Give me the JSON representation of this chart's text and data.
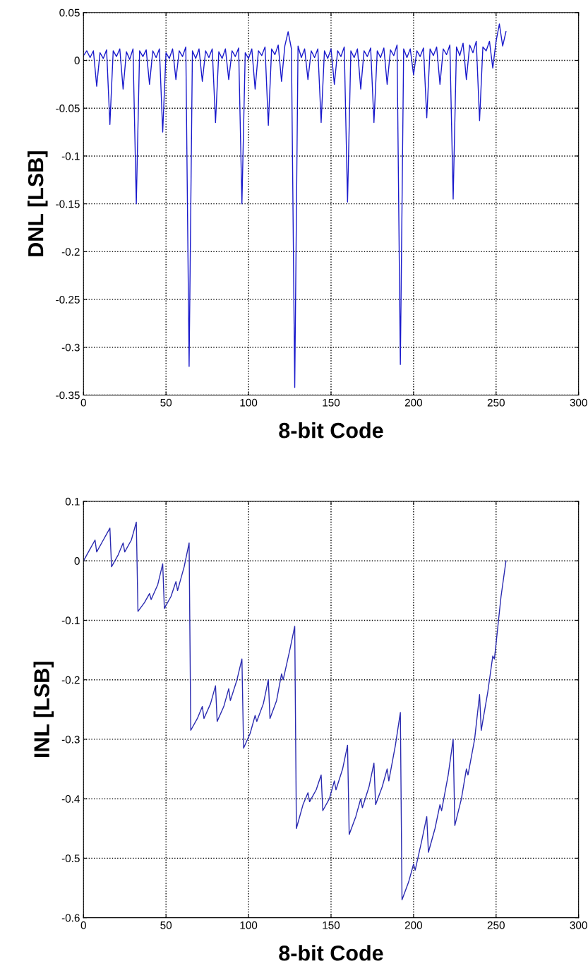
{
  "chart_data": [
    {
      "type": "line",
      "xlabel": "8-bit Code",
      "ylabel": "DNL [LSB]",
      "xlim": [
        0,
        300
      ],
      "xticks": [
        0,
        50,
        100,
        150,
        200,
        250,
        300
      ],
      "ylim": [
        -0.35,
        0.05
      ],
      "yticks": [
        -0.35,
        -0.3,
        -0.25,
        -0.2,
        -0.15,
        -0.1,
        -0.05,
        0,
        0.05
      ],
      "grid": true,
      "legend": false,
      "series": [
        {
          "color": "#1a1acc",
          "x": [
            0,
            2,
            4,
            6,
            8,
            10,
            12,
            14,
            16,
            18,
            20,
            22,
            24,
            26,
            28,
            30,
            32,
            34,
            36,
            38,
            40,
            42,
            44,
            46,
            48,
            50,
            52,
            54,
            56,
            58,
            60,
            62,
            64,
            66,
            68,
            70,
            72,
            74,
            76,
            78,
            80,
            82,
            84,
            86,
            88,
            90,
            92,
            94,
            96,
            98,
            100,
            102,
            104,
            106,
            108,
            110,
            112,
            114,
            116,
            118,
            120,
            122,
            124,
            126,
            128,
            130,
            132,
            134,
            136,
            138,
            140,
            142,
            144,
            146,
            148,
            150,
            152,
            154,
            156,
            158,
            160,
            162,
            164,
            166,
            168,
            170,
            172,
            174,
            176,
            178,
            180,
            182,
            184,
            186,
            188,
            190,
            192,
            194,
            196,
            198,
            200,
            202,
            204,
            206,
            208,
            210,
            212,
            214,
            216,
            218,
            220,
            222,
            224,
            226,
            228,
            230,
            232,
            234,
            236,
            238,
            240,
            242,
            244,
            246,
            248,
            250,
            252,
            254,
            256
          ],
          "values": [
            0.005,
            0.01,
            0.003,
            0.01,
            -0.027,
            0.008,
            0.002,
            0.011,
            -0.067,
            0.01,
            0.004,
            0.012,
            -0.03,
            0.009,
            0.001,
            0.012,
            -0.15,
            0.01,
            0.004,
            0.011,
            -0.025,
            0.01,
            0.003,
            0.012,
            -0.075,
            0.008,
            0.002,
            0.012,
            -0.02,
            0.01,
            0.004,
            0.014,
            -0.32,
            0.01,
            0.002,
            0.012,
            -0.022,
            0.01,
            0.003,
            0.012,
            -0.065,
            0.009,
            0.002,
            0.012,
            -0.02,
            0.01,
            0.004,
            0.013,
            -0.15,
            0.008,
            0.002,
            0.012,
            -0.03,
            0.01,
            0.005,
            0.014,
            -0.068,
            0.012,
            0.006,
            0.016,
            -0.022,
            0.015,
            0.03,
            0.012,
            -0.342,
            0.015,
            0.003,
            0.012,
            -0.02,
            0.01,
            0.003,
            0.012,
            -0.065,
            0.01,
            0.002,
            0.012,
            -0.025,
            0.01,
            0.004,
            0.014,
            -0.148,
            0.01,
            0.003,
            0.012,
            -0.03,
            0.01,
            0.004,
            0.013,
            -0.065,
            0.01,
            0.003,
            0.013,
            -0.025,
            0.011,
            0.005,
            0.016,
            -0.318,
            0.012,
            0.003,
            0.012,
            -0.015,
            0.01,
            0.004,
            0.013,
            -0.06,
            0.012,
            0.005,
            0.014,
            -0.025,
            0.012,
            0.006,
            0.016,
            -0.145,
            0.014,
            0.005,
            0.018,
            -0.02,
            0.016,
            0.008,
            0.02,
            -0.063,
            0.014,
            0.01,
            0.02,
            -0.008,
            0.02,
            0.038,
            0.015,
            0.03
          ]
        }
      ]
    },
    {
      "type": "line",
      "xlabel": "8-bit Code",
      "ylabel": "INL [LSB]",
      "xlim": [
        0,
        300
      ],
      "xticks": [
        0,
        50,
        100,
        150,
        200,
        250,
        300
      ],
      "ylim": [
        -0.6,
        0.1
      ],
      "yticks": [
        -0.6,
        -0.5,
        -0.4,
        -0.3,
        -0.2,
        -0.1,
        0,
        0.1
      ],
      "grid": true,
      "legend": false,
      "series": [
        {
          "color": "#2a2ab0",
          "x": [
            0,
            4,
            7,
            8,
            12,
            15,
            16,
            17,
            21,
            24,
            25,
            29,
            32,
            33,
            37,
            40,
            41,
            45,
            48,
            49,
            53,
            56,
            57,
            61,
            64,
            65,
            69,
            72,
            73,
            77,
            80,
            81,
            85,
            88,
            89,
            93,
            96,
            97,
            101,
            104,
            105,
            109,
            112,
            113,
            117,
            120,
            121,
            125,
            128,
            129,
            133,
            136,
            137,
            141,
            144,
            145,
            149,
            152,
            153,
            157,
            160,
            161,
            165,
            168,
            169,
            173,
            176,
            177,
            181,
            184,
            185,
            189,
            192,
            193,
            197,
            200,
            201,
            205,
            208,
            209,
            213,
            216,
            217,
            221,
            224,
            225,
            229,
            232,
            233,
            237,
            240,
            241,
            245,
            248,
            249,
            253,
            256
          ],
          "values": [
            0,
            0.02,
            0.035,
            0.015,
            0.035,
            0.05,
            0.055,
            -0.01,
            0.01,
            0.03,
            0.015,
            0.035,
            0.065,
            -0.085,
            -0.07,
            -0.055,
            -0.065,
            -0.04,
            -0.005,
            -0.08,
            -0.06,
            -0.035,
            -0.05,
            -0.01,
            0.03,
            -0.285,
            -0.265,
            -0.245,
            -0.265,
            -0.24,
            -0.21,
            -0.27,
            -0.245,
            -0.215,
            -0.235,
            -0.2,
            -0.165,
            -0.315,
            -0.29,
            -0.26,
            -0.27,
            -0.24,
            -0.2,
            -0.265,
            -0.235,
            -0.19,
            -0.2,
            -0.15,
            -0.11,
            -0.45,
            -0.41,
            -0.39,
            -0.405,
            -0.385,
            -0.36,
            -0.42,
            -0.4,
            -0.37,
            -0.385,
            -0.35,
            -0.31,
            -0.46,
            -0.43,
            -0.4,
            -0.415,
            -0.38,
            -0.34,
            -0.41,
            -0.38,
            -0.35,
            -0.37,
            -0.31,
            -0.255,
            -0.57,
            -0.54,
            -0.51,
            -0.52,
            -0.47,
            -0.43,
            -0.49,
            -0.45,
            -0.41,
            -0.42,
            -0.36,
            -0.3,
            -0.445,
            -0.4,
            -0.35,
            -0.36,
            -0.3,
            -0.225,
            -0.285,
            -0.22,
            -0.16,
            -0.165,
            -0.06,
            0
          ]
        }
      ]
    }
  ]
}
